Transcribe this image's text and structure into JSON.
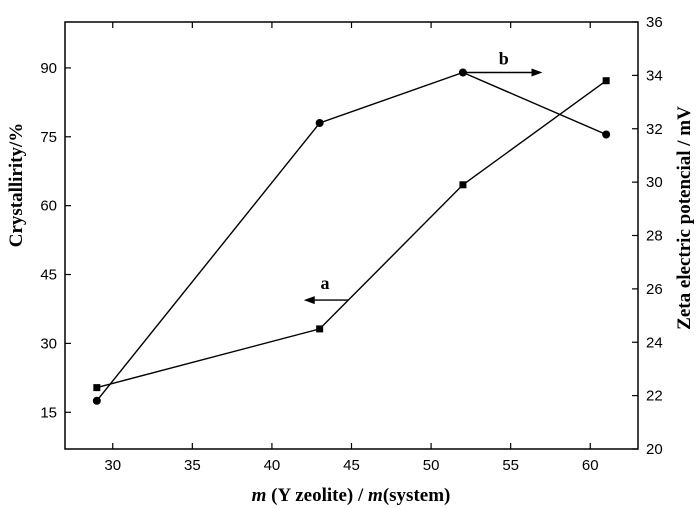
{
  "chart_data": {
    "type": "line",
    "xlabel": {
      "full": "m (Y zeolite) / m(system)",
      "m1": "m",
      "part1": " (Y zeolite) / ",
      "m2": "m",
      "part2": "(system)"
    },
    "ylabel_left": "Crystallirity/%",
    "ylabel_right": "Zeta electric potencial / mV",
    "xlim": [
      27,
      63
    ],
    "ylim_left": [
      7,
      100
    ],
    "ylim_right": [
      20,
      36
    ],
    "xticks": [
      30,
      35,
      40,
      45,
      50,
      55,
      60
    ],
    "yticks_left": [
      15,
      30,
      45,
      60,
      75,
      90
    ],
    "yticks_right": [
      20,
      22,
      24,
      26,
      28,
      30,
      32,
      34,
      36
    ],
    "grid": false,
    "series": [
      {
        "axis": "left",
        "marker": "circle",
        "x": [
          29,
          43,
          52,
          61
        ],
        "y": [
          17.5,
          78,
          89,
          75.5
        ]
      },
      {
        "axis": "right",
        "marker": "square",
        "x": [
          29,
          43,
          52,
          61
        ],
        "y": [
          22.3,
          24.5,
          29.9,
          33.8
        ]
      }
    ],
    "annotations": [
      {
        "label": "a",
        "arrow": "left",
        "series": 1
      },
      {
        "label": "b",
        "arrow": "right",
        "series": 0
      }
    ]
  }
}
